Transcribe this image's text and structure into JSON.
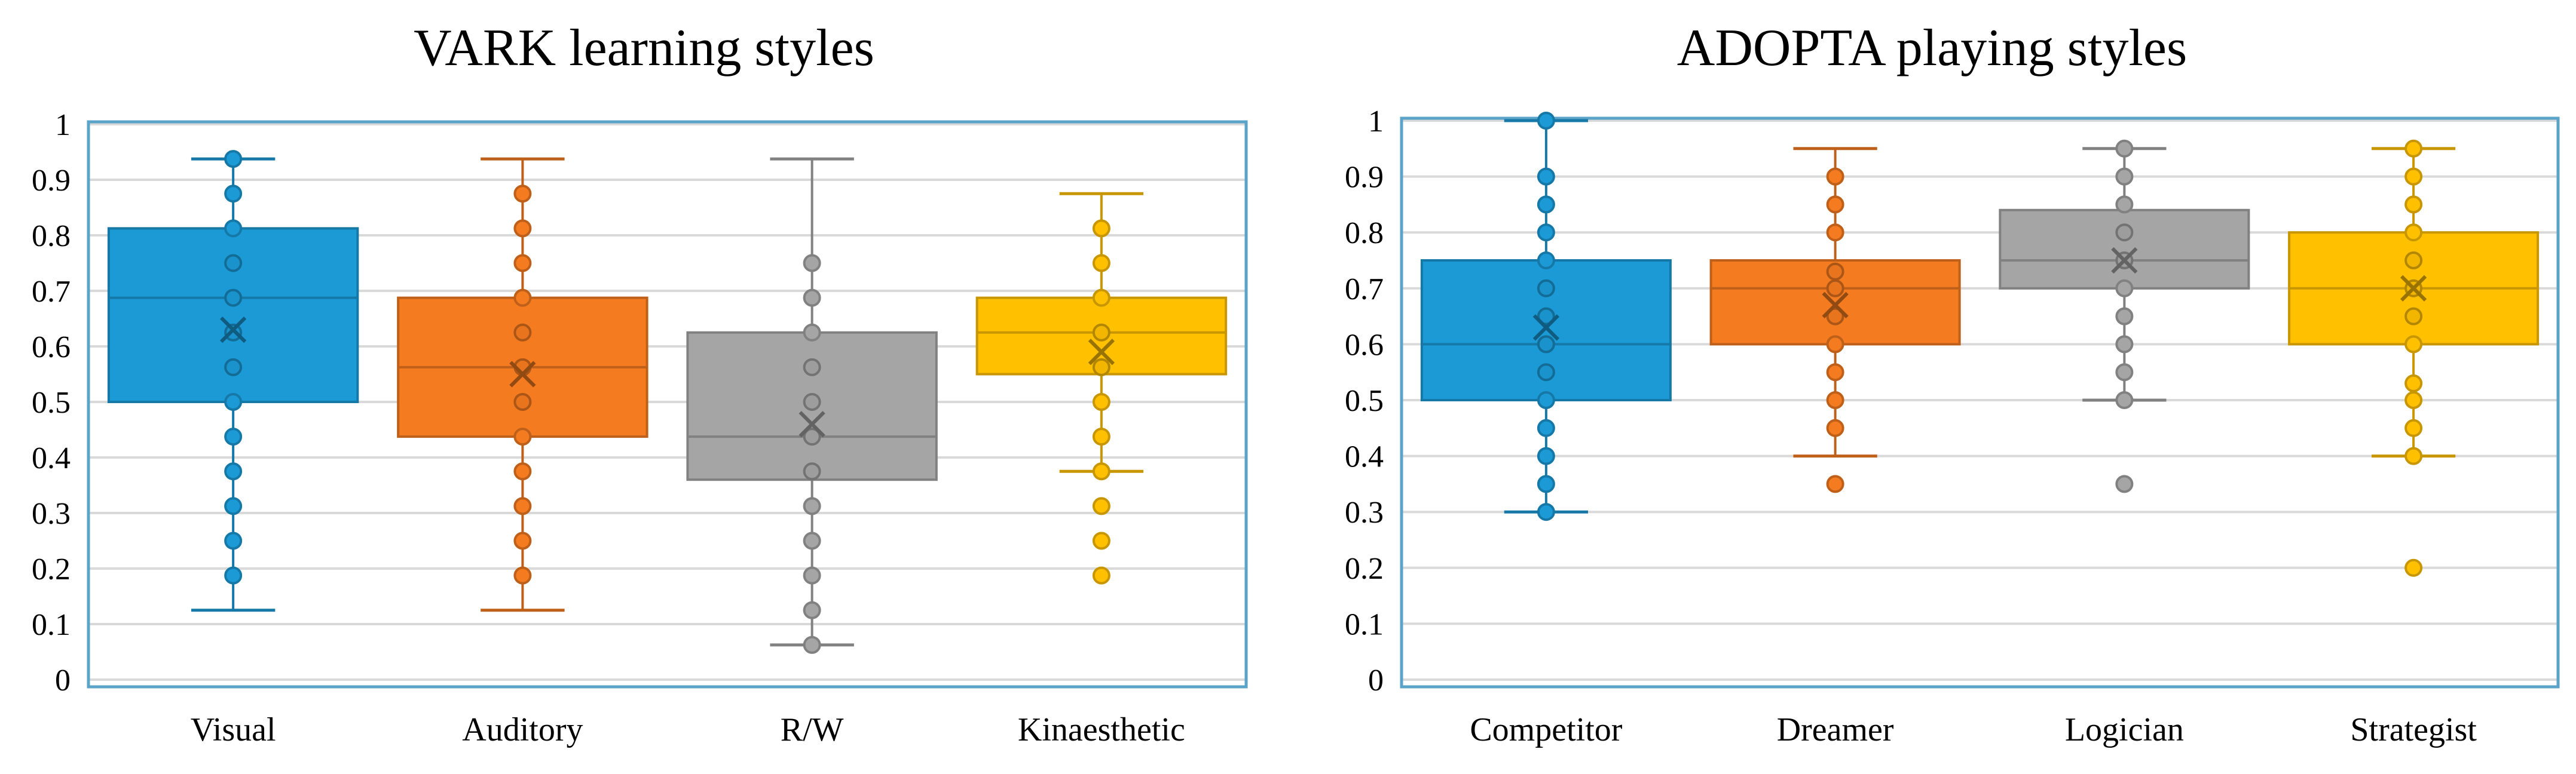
{
  "chart_data": [
    {
      "type": "box",
      "title": "VARK learning styles",
      "xlabel": "",
      "ylabel": "",
      "ylim": [
        0,
        1
      ],
      "yticks": [
        "0",
        "0.1",
        "0.2",
        "0.3",
        "0.4",
        "0.5",
        "0.6",
        "0.7",
        "0.8",
        "0.9",
        "1"
      ],
      "grid": true,
      "categories": [
        "Visual",
        "Auditory",
        "R/W",
        "Kinaesthetic"
      ],
      "series": [
        {
          "name": "Visual",
          "color": "#1B9AD6",
          "min": 0.125,
          "q1": 0.5,
          "median": 0.6875,
          "q3": 0.8125,
          "max": 0.9375,
          "mean": 0.63,
          "points": [
            0.1875,
            0.25,
            0.3125,
            0.375,
            0.4375,
            0.5,
            0.5625,
            0.625,
            0.6875,
            0.75,
            0.8125,
            0.875,
            0.9375
          ]
        },
        {
          "name": "Auditory",
          "color": "#F47B20",
          "min": 0.125,
          "q1": 0.4375,
          "median": 0.5625,
          "q3": 0.6875,
          "max": 0.9375,
          "mean": 0.55,
          "points": [
            0.1875,
            0.25,
            0.3125,
            0.375,
            0.4375,
            0.5,
            0.5625,
            0.625,
            0.6875,
            0.75,
            0.8125,
            0.875
          ]
        },
        {
          "name": "R/W",
          "color": "#A5A5A5",
          "min": 0.0625,
          "q1": 0.36,
          "median": 0.4375,
          "q3": 0.625,
          "max": 0.9375,
          "mean": 0.46,
          "points": [
            0.0625,
            0.125,
            0.1875,
            0.25,
            0.3125,
            0.375,
            0.4375,
            0.5,
            0.5625,
            0.625,
            0.6875,
            0.75
          ]
        },
        {
          "name": "Kinaesthetic",
          "color": "#FFC000",
          "min": 0.375,
          "q1": 0.55,
          "median": 0.625,
          "q3": 0.6875,
          "max": 0.875,
          "mean": 0.59,
          "points": [
            0.1875,
            0.25,
            0.3125,
            0.375,
            0.4375,
            0.5,
            0.5625,
            0.625,
            0.6875,
            0.75,
            0.8125
          ]
        }
      ]
    },
    {
      "type": "box",
      "title": "ADOPTA playing styles",
      "xlabel": "",
      "ylabel": "",
      "ylim": [
        0,
        1
      ],
      "yticks": [
        "0",
        "0.1",
        "0.2",
        "0.3",
        "0.4",
        "0.5",
        "0.6",
        "0.7",
        "0.8",
        "0.9",
        "1"
      ],
      "grid": true,
      "categories": [
        "Competitor",
        "Dreamer",
        "Logician",
        "Strategist"
      ],
      "series": [
        {
          "name": "Competitor",
          "color": "#1B9AD6",
          "min": 0.3,
          "q1": 0.5,
          "median": 0.6,
          "q3": 0.75,
          "max": 1.0,
          "mean": 0.63,
          "points": [
            0.3,
            0.35,
            0.4,
            0.45,
            0.5,
            0.55,
            0.6,
            0.65,
            0.7,
            0.75,
            0.8,
            0.85,
            0.9,
            1.0
          ]
        },
        {
          "name": "Dreamer",
          "color": "#F47B20",
          "min": 0.4,
          "q1": 0.6,
          "median": 0.7,
          "q3": 0.75,
          "max": 0.95,
          "mean": 0.67,
          "points": [
            0.35,
            0.45,
            0.5,
            0.55,
            0.6,
            0.65,
            0.7,
            0.73,
            0.8,
            0.85,
            0.9
          ]
        },
        {
          "name": "Logician",
          "color": "#A5A5A5",
          "min": 0.5,
          "q1": 0.7,
          "median": 0.75,
          "q3": 0.84,
          "max": 0.95,
          "mean": 0.75,
          "points": [
            0.35,
            0.5,
            0.55,
            0.6,
            0.65,
            0.7,
            0.75,
            0.8,
            0.85,
            0.9,
            0.95
          ]
        },
        {
          "name": "Strategist",
          "color": "#FFC000",
          "min": 0.4,
          "q1": 0.6,
          "median": 0.7,
          "q3": 0.8,
          "max": 0.95,
          "mean": 0.7,
          "points": [
            0.2,
            0.4,
            0.45,
            0.5,
            0.53,
            0.6,
            0.65,
            0.7,
            0.75,
            0.8,
            0.85,
            0.9,
            0.95
          ]
        }
      ]
    }
  ]
}
